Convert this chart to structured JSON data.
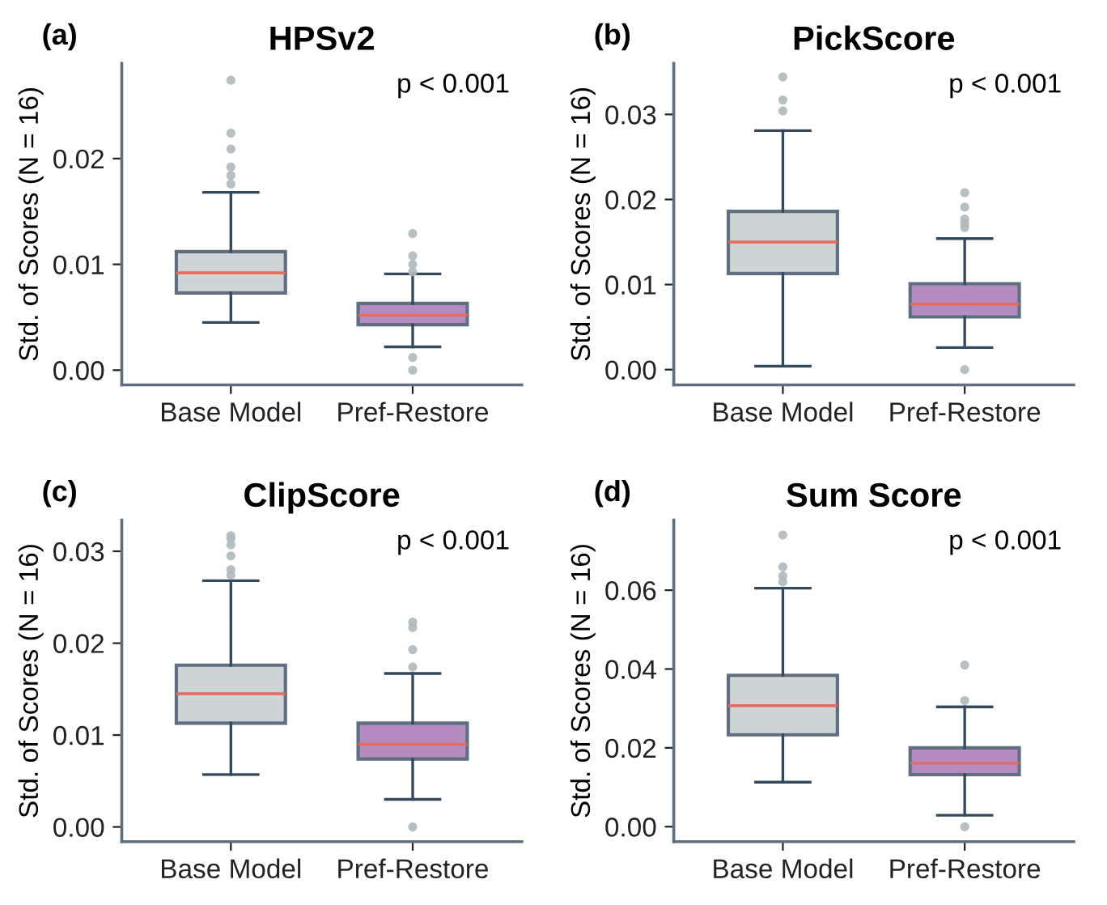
{
  "chart_data": [
    {
      "type": "box",
      "title": "HPSv2",
      "ylabel": "Std. of Scores (N = 16)",
      "annotations": [
        "(a)",
        "p < 0.001"
      ],
      "categories": [
        "Base Model",
        "Pref-Restore"
      ],
      "ylim": [
        -0.0014,
        0.029
      ],
      "yticks": [
        {
          "value": 0,
          "label": "0.00"
        },
        {
          "value": 0.01,
          "label": "0.01"
        },
        {
          "value": 0.02,
          "label": "0.02"
        }
      ],
      "grid": false,
      "series": [
        {
          "colors": [
            "#cfd4d6",
            "#b48cc2"
          ],
          "boxes": [
            {
              "low": 0.0045,
              "q1": 0.0073,
              "median": 0.0092,
              "q3": 0.0112,
              "high": 0.0168,
              "outliers": [
                0.0274,
                0.0224,
                0.0209,
                0.0192,
                0.0184,
                0.0176
              ]
            },
            {
              "low": 0.0022,
              "q1": 0.0043,
              "median": 0.0052,
              "q3": 0.0063,
              "high": 0.0091,
              "outliers": [
                0.0129,
                0.0108,
                0.01,
                0.0093,
                0.0012,
                0.0
              ]
            }
          ]
        }
      ]
    },
    {
      "type": "box",
      "title": "PickScore",
      "ylabel": "Std. of Scores (N = 16)",
      "annotations": [
        "(b)",
        "p < 0.001"
      ],
      "categories": [
        "Base Model",
        "Pref-Restore"
      ],
      "ylim": [
        -0.0018,
        0.036
      ],
      "yticks": [
        {
          "value": 0,
          "label": "0.00"
        },
        {
          "value": 0.01,
          "label": "0.01"
        },
        {
          "value": 0.02,
          "label": "0.02"
        },
        {
          "value": 0.03,
          "label": "0.03"
        }
      ],
      "grid": false,
      "series": [
        {
          "colors": [
            "#cfd4d6",
            "#b48cc2"
          ],
          "boxes": [
            {
              "low": 0.0004,
              "q1": 0.0113,
              "median": 0.015,
              "q3": 0.0186,
              "high": 0.0281,
              "outliers": [
                0.0344,
                0.0317,
                0.0304
              ]
            },
            {
              "low": 0.0026,
              "q1": 0.0062,
              "median": 0.0077,
              "q3": 0.0101,
              "high": 0.0154,
              "outliers": [
                0.0208,
                0.0191,
                0.0177,
                0.0172,
                0.0167,
                0.0
              ]
            }
          ]
        }
      ]
    },
    {
      "type": "box",
      "title": "ClipScore",
      "ylabel": "Std. of Scores (N = 16)",
      "annotations": [
        "(c)",
        "p < 0.001"
      ],
      "categories": [
        "Base Model",
        "Pref-Restore"
      ],
      "ylim": [
        -0.0016,
        0.0334
      ],
      "yticks": [
        {
          "value": 0,
          "label": "0.00"
        },
        {
          "value": 0.01,
          "label": "0.01"
        },
        {
          "value": 0.02,
          "label": "0.02"
        },
        {
          "value": 0.03,
          "label": "0.03"
        }
      ],
      "grid": false,
      "series": [
        {
          "colors": [
            "#cfd4d6",
            "#b48cc2"
          ],
          "boxes": [
            {
              "low": 0.0057,
              "q1": 0.0113,
              "median": 0.0145,
              "q3": 0.0176,
              "high": 0.0268,
              "outliers": [
                0.0317,
                0.0314,
                0.0307,
                0.0295,
                0.028,
                0.0274
              ]
            },
            {
              "low": 0.003,
              "q1": 0.0074,
              "median": 0.009,
              "q3": 0.0113,
              "high": 0.0167,
              "outliers": [
                0.0223,
                0.0217,
                0.0193,
                0.0174,
                0.0
              ]
            }
          ]
        }
      ]
    },
    {
      "type": "box",
      "title": "Sum Score",
      "ylabel": "Std. of Scores (N = 16)",
      "annotations": [
        "(d)",
        "p < 0.001"
      ],
      "categories": [
        "Base Model",
        "Pref-Restore"
      ],
      "ylim": [
        -0.0038,
        0.0778
      ],
      "yticks": [
        {
          "value": 0,
          "label": "0.00"
        },
        {
          "value": 0.02,
          "label": "0.02"
        },
        {
          "value": 0.04,
          "label": "0.04"
        },
        {
          "value": 0.06,
          "label": "0.06"
        }
      ],
      "grid": false,
      "series": [
        {
          "colors": [
            "#cfd4d6",
            "#b48cc2"
          ],
          "boxes": [
            {
              "low": 0.0113,
              "q1": 0.0233,
              "median": 0.0307,
              "q3": 0.0384,
              "high": 0.0605,
              "outliers": [
                0.074,
                0.0659,
                0.0636,
                0.0621
              ]
            },
            {
              "low": 0.0029,
              "q1": 0.0132,
              "median": 0.0161,
              "q3": 0.02,
              "high": 0.0304,
              "outliers": [
                0.041,
                0.032,
                0.0
              ]
            }
          ]
        }
      ]
    }
  ]
}
